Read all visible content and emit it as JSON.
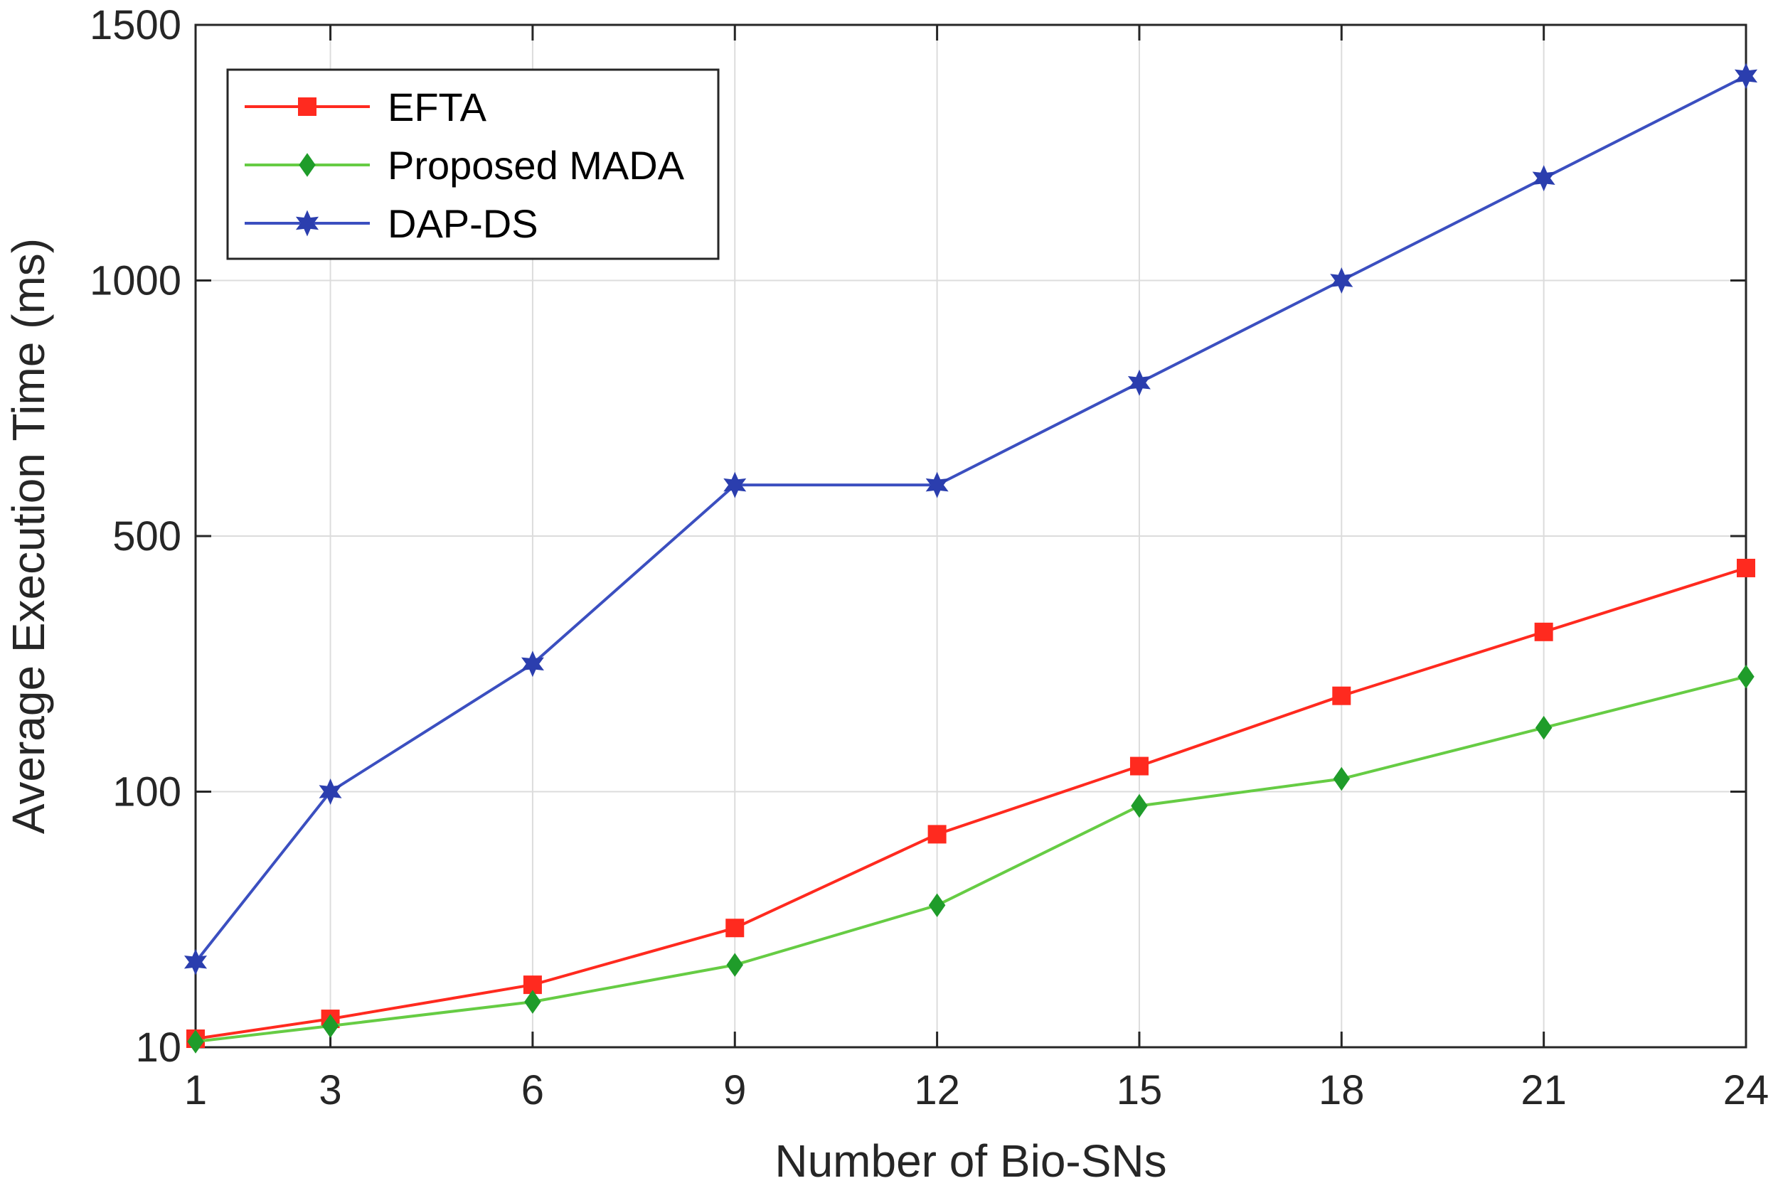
{
  "chart_data": {
    "type": "line",
    "xlabel": "Number of Bio-SNs",
    "ylabel": "Average Execution Time (ms)",
    "x_ticks": [
      1,
      3,
      6,
      9,
      12,
      15,
      18,
      21,
      24
    ],
    "y_ticks": [
      {
        "value": 10,
        "label": "10"
      },
      {
        "value": 100,
        "label": "100"
      },
      {
        "value": 500,
        "label": "500"
      },
      {
        "value": 1000,
        "label": "1000"
      },
      {
        "value": 1500,
        "label": "1500"
      }
    ],
    "xlim": [
      1,
      24
    ],
    "ylim": [
      10,
      1500
    ],
    "y_scale": "piecewise: 10, 100, 500, 1000, 1500 equally spaced",
    "grid": true,
    "legend_position": "top-left",
    "x": [
      1,
      3,
      6,
      9,
      12,
      15,
      18,
      21,
      24
    ],
    "series": [
      {
        "name": "EFTA",
        "color": "#ff2a1f",
        "marker": "square",
        "values": [
          13,
          20,
          32,
          52,
          85,
          140,
          250,
          350,
          450
        ]
      },
      {
        "name": "Proposed MADA",
        "color": "#1f9c2a",
        "line_color": "#66cc44",
        "marker": "diamond",
        "values": [
          12,
          17.5,
          26,
          39,
          60,
          95,
          120,
          200,
          280
        ]
      },
      {
        "name": "DAP-DS",
        "color": "#2b3eae",
        "line_color": "#3b4fc0",
        "marker": "star",
        "values": [
          40,
          100,
          300,
          600,
          600,
          800,
          1000,
          1200,
          1400
        ]
      }
    ]
  }
}
